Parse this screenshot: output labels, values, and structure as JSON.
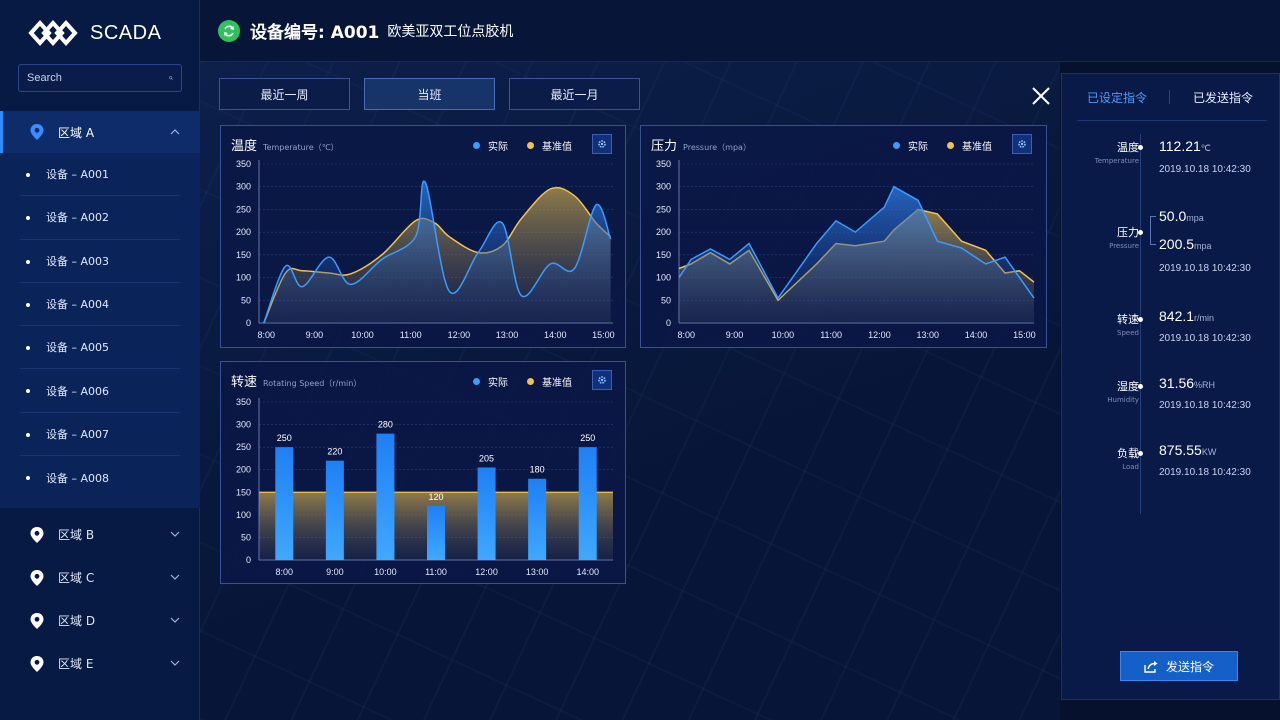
{
  "app": {
    "logo_text": "SCADA"
  },
  "search": {
    "placeholder": "Search"
  },
  "sidebar": {
    "zones": [
      {
        "label": "区域 A",
        "expanded": true
      },
      {
        "label": "区域 B",
        "expanded": false
      },
      {
        "label": "区域 C",
        "expanded": false
      },
      {
        "label": "区域 D",
        "expanded": false
      },
      {
        "label": "区域 E",
        "expanded": false
      }
    ],
    "devices": [
      "设备 – A001",
      "设备 – A002",
      "设备 – A003",
      "设备 – A004",
      "设备 – A005",
      "设备 – A006",
      "设备 – A007",
      "设备 – A008"
    ]
  },
  "header": {
    "device_label": "设备编号: A001",
    "device_name": "欧美亚双工位点胶机",
    "status_color": "#2ec25b"
  },
  "tabs": [
    {
      "label": "最近一周",
      "active": false
    },
    {
      "label": "当班",
      "active": true
    },
    {
      "label": "最近一月",
      "active": false
    }
  ],
  "legend": {
    "actual": "实际",
    "baseline": "基准值",
    "actual_color": "#3a9cff",
    "baseline_color": "#f2c14e"
  },
  "colors": {
    "accent": "#2f8cff",
    "panel_border": "#3a4f9c",
    "button": "#1560c8"
  },
  "chart_data": [
    {
      "type": "area",
      "title": "温度",
      "subtitle": "Temperature（℃）",
      "categories": [
        "8:00",
        "9:00",
        "10:00",
        "11:00",
        "12:00",
        "13:00",
        "14:00",
        "15:00"
      ],
      "ylim": [
        0,
        350
      ],
      "yticks": [
        0,
        50,
        100,
        150,
        200,
        250,
        300,
        350
      ],
      "grid": true,
      "legend_position": "top-right",
      "series": [
        {
          "name": "实际",
          "x": [
            7.95,
            8.4,
            8.75,
            9.3,
            9.75,
            10.4,
            11.1,
            11.3,
            11.8,
            12.4,
            12.9,
            13.3,
            13.9,
            14.4,
            14.85,
            15.15
          ],
          "values": [
            0,
            125,
            80,
            145,
            85,
            140,
            190,
            310,
            70,
            155,
            220,
            60,
            130,
            120,
            260,
            185
          ]
        },
        {
          "name": "基准值",
          "x": [
            7.95,
            8.4,
            8.75,
            9.3,
            9.75,
            10.4,
            11.1,
            11.5,
            11.8,
            12.4,
            12.9,
            13.3,
            13.9,
            14.4,
            14.85,
            15.15
          ],
          "values": [
            0,
            110,
            115,
            110,
            108,
            150,
            225,
            220,
            190,
            155,
            170,
            230,
            295,
            280,
            220,
            190
          ]
        }
      ]
    },
    {
      "type": "area",
      "title": "压力",
      "subtitle": "Pressure（mpa）",
      "categories": [
        "8:00",
        "9:00",
        "10:00",
        "11:00",
        "12:00",
        "13:00",
        "14:00",
        "15:00"
      ],
      "ylim": [
        0,
        350
      ],
      "yticks": [
        0,
        50,
        100,
        150,
        200,
        250,
        300,
        350
      ],
      "grid": true,
      "legend_position": "top-right",
      "series": [
        {
          "name": "实际",
          "x": [
            7.85,
            8.1,
            8.5,
            8.9,
            9.3,
            9.9,
            10.3,
            10.7,
            11.1,
            11.5,
            12.1,
            12.3,
            12.8,
            13.2,
            13.7,
            14.2,
            14.6,
            14.9,
            15.2
          ],
          "values": [
            100,
            140,
            163,
            140,
            175,
            55,
            115,
            175,
            225,
            200,
            255,
            300,
            270,
            180,
            165,
            130,
            145,
            100,
            55
          ]
        },
        {
          "name": "基准值",
          "x": [
            7.85,
            8.1,
            8.5,
            8.9,
            9.3,
            9.9,
            10.3,
            10.7,
            11.1,
            11.5,
            12.1,
            12.3,
            12.8,
            13.2,
            13.7,
            14.2,
            14.6,
            14.9,
            15.2
          ],
          "values": [
            120,
            130,
            155,
            130,
            160,
            50,
            90,
            130,
            175,
            170,
            180,
            205,
            250,
            240,
            180,
            160,
            110,
            115,
            90
          ]
        }
      ]
    },
    {
      "type": "bar",
      "title": "转速",
      "subtitle": "Rotating Speed（r/min）",
      "categories": [
        "8:00",
        "9:00",
        "10:00",
        "11:00",
        "12:00",
        "13:00",
        "14:00"
      ],
      "ylim": [
        0,
        350
      ],
      "yticks": [
        0,
        50,
        100,
        150,
        200,
        250,
        300,
        350
      ],
      "grid": true,
      "legend_position": "top-right",
      "series": [
        {
          "name": "实际",
          "values": [
            250,
            220,
            280,
            120,
            205,
            180,
            250
          ]
        },
        {
          "name": "基准值",
          "values": [
            150,
            150,
            150,
            150,
            150,
            150,
            150
          ]
        }
      ]
    }
  ],
  "right_panel": {
    "tabs": [
      "已设定指令",
      "已发送指令"
    ],
    "active_tab": 0,
    "metrics": [
      {
        "name": "温度",
        "en": "Temperature",
        "values": [
          {
            "v": "112.21",
            "u": "℃"
          }
        ],
        "time": "2019.10.18  10:42:30"
      },
      {
        "name": "压力",
        "en": "Pressure",
        "values": [
          {
            "v": "50.0",
            "u": "mpa"
          },
          {
            "v": "200.5",
            "u": "mpa"
          }
        ],
        "time": "2019.10.18  10:42:30"
      },
      {
        "name": "转速",
        "en": "Speed",
        "values": [
          {
            "v": "842.1",
            "u": "r/min"
          }
        ],
        "time": "2019.10.18  10:42:30"
      },
      {
        "name": "湿度",
        "en": "Humidity",
        "values": [
          {
            "v": "31.56",
            "u": "%RH"
          }
        ],
        "time": "2019.10.18  10:42:30"
      },
      {
        "name": "负载",
        "en": "Load",
        "values": [
          {
            "v": "875.55",
            "u": "KW"
          }
        ],
        "time": "2019.10.18  10:42:30"
      }
    ],
    "send_button": "发送指令"
  }
}
